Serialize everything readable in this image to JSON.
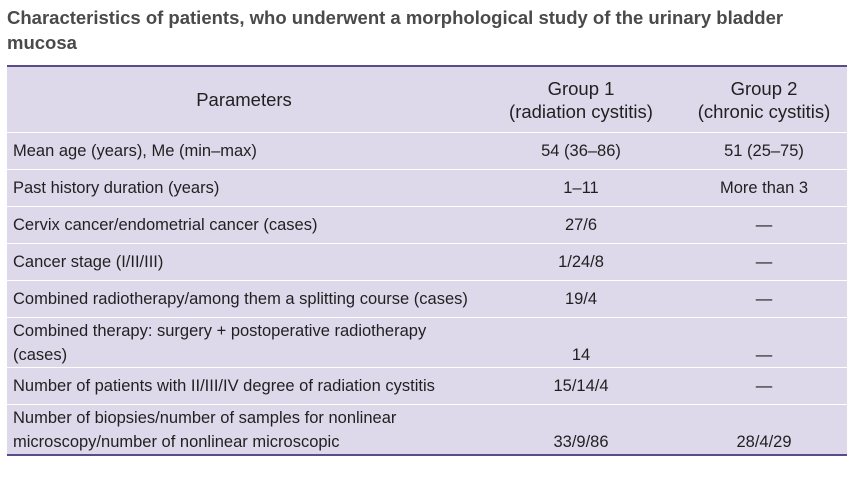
{
  "title": "Characteristics of patients, who underwent a morphological study of the urinary bladder mucosa",
  "table": {
    "headers": {
      "parameters": "Parameters",
      "group1_line1": "Group 1",
      "group1_line2": "(radiation cystitis)",
      "group2_line1": "Group 2",
      "group2_line2": "(chronic cystitis)"
    },
    "rows": [
      {
        "parameter": "Mean age (years), Me (min–max)",
        "group1": "54 (36–86)",
        "group2": "51 (25–75)"
      },
      {
        "parameter": "Past history duration (years)",
        "group1": "1–11",
        "group2": "More than 3"
      },
      {
        "parameter": "Cervix cancer/endometrial cancer (cases)",
        "group1": "27/6",
        "group2": "—"
      },
      {
        "parameter": "Cancer stage (I/II/III)",
        "group1": "1/24/8",
        "group2": "—"
      },
      {
        "parameter": "Combined radiotherapy/among them a splitting course (cases)",
        "group1": "19/4",
        "group2": "—"
      },
      {
        "parameter": "Combined therapy: surgery + postoperative radiotherapy (cases)",
        "group1": "14",
        "group2": "—"
      },
      {
        "parameter": "Number of patients with II/III/IV degree of radiation cystitis",
        "group1": "15/14/4",
        "group2": "—"
      },
      {
        "parameter": "Number of biopsies/number of samples for nonlinear microscopy/number of nonlinear microscopic",
        "group1": "33/9/86",
        "group2": "28/4/29"
      }
    ]
  }
}
